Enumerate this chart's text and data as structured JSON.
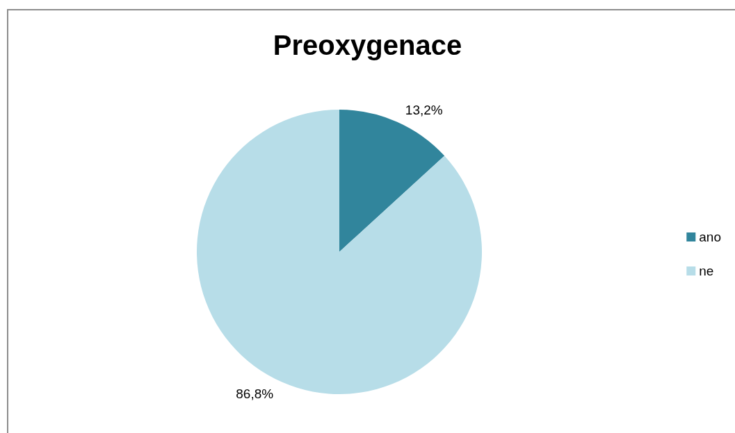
{
  "chart_data": {
    "type": "pie",
    "title": "Preoxygenace",
    "categories": [
      "ano",
      "ne"
    ],
    "values": [
      13.2,
      86.8
    ],
    "colors": [
      "#31859c",
      "#b7dde8"
    ],
    "value_labels": [
      "13,2%",
      "86,8%"
    ],
    "legend": "right"
  }
}
